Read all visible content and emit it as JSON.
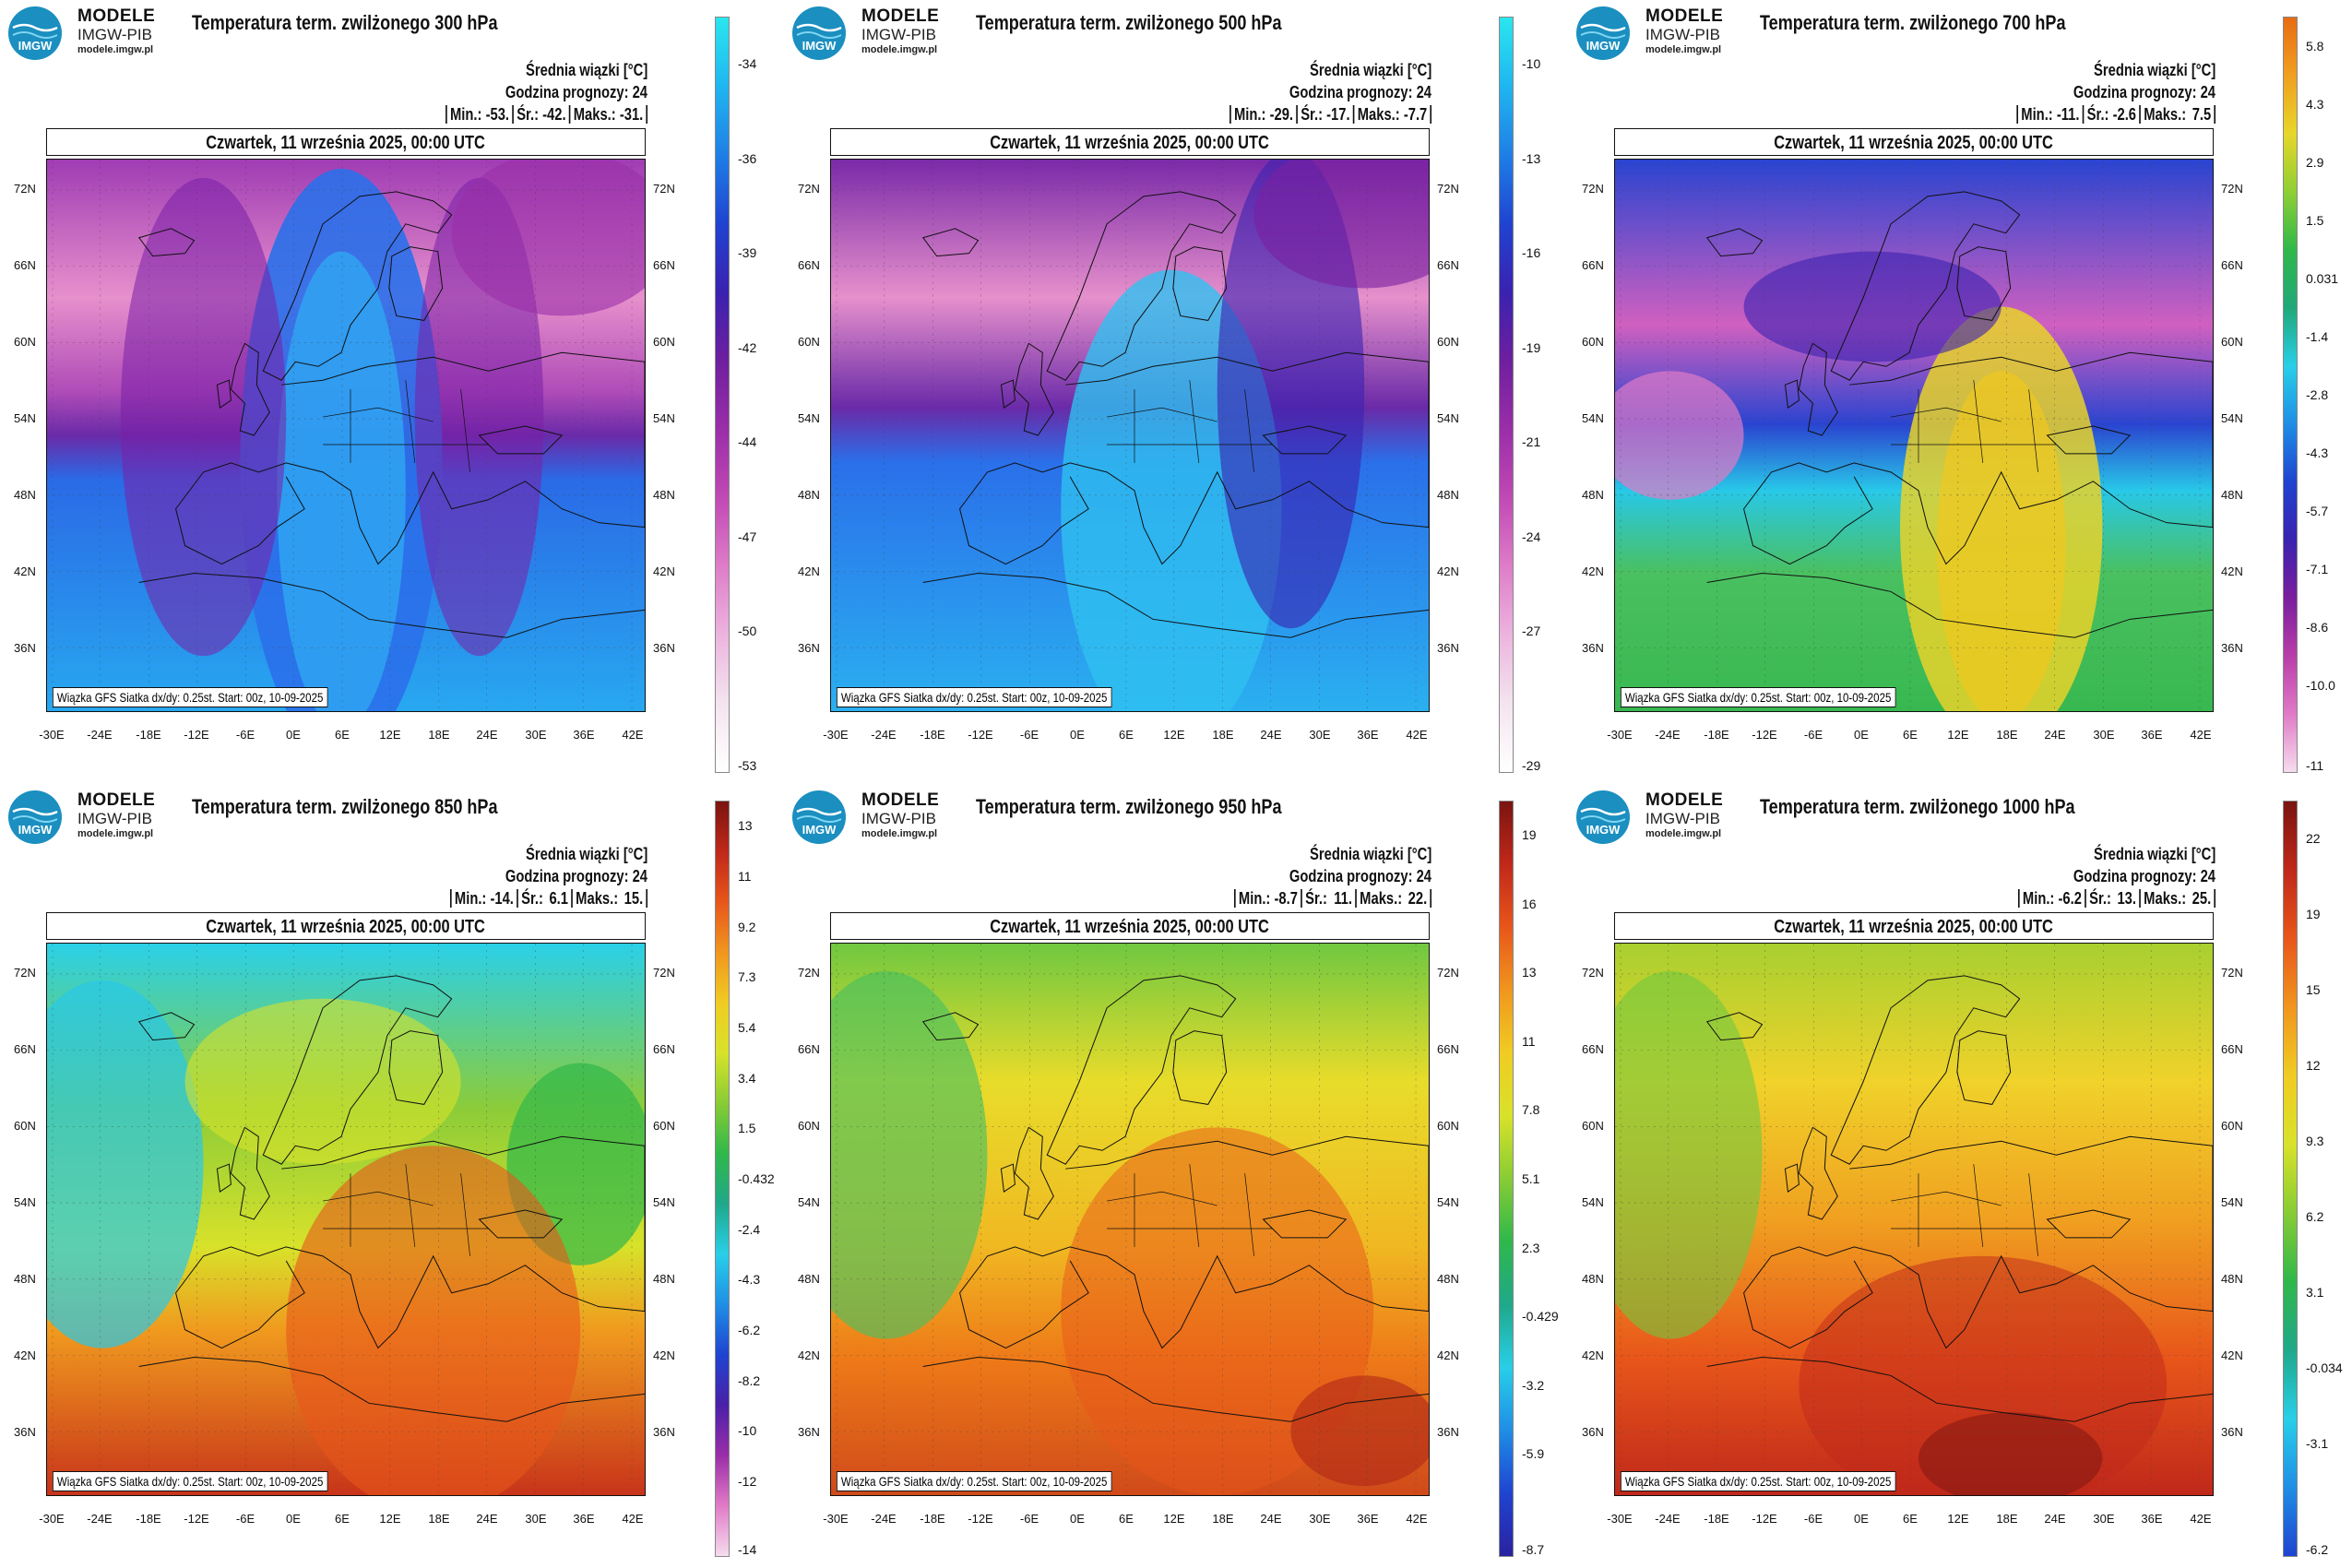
{
  "brand": {
    "name": "MODELE",
    "org": "IMGW-PIB",
    "url": "modele.imgw.pl",
    "logo_text": "IMGW"
  },
  "common": {
    "stat_header": "Średnia wiązki [°C]",
    "forecast_hour": "Godzina prognozy: 24",
    "min_label": "Min.:",
    "mean_label": "Śr.:",
    "max_label": "Maks.:",
    "date": "Czwartek, 11 września 2025, 00:00 UTC",
    "footer": "Wiązka GFS Siatka dx/dy: 0.25st. Start: 00z, 10-09-2025",
    "lat_labels": [
      "72N",
      "66N",
      "60N",
      "54N",
      "48N",
      "42N",
      "36N"
    ],
    "lon_labels": [
      "-30E",
      "-24E",
      "-18E",
      "-12E",
      "-6E",
      "0E",
      "6E",
      "12E",
      "18E",
      "24E",
      "30E",
      "36E",
      "42E"
    ]
  },
  "colors": {
    "cold_pink": "#e680c8",
    "purple": "#8a1fa0",
    "blue": "#1f4fd8",
    "cyan": "#2ad4ee",
    "green": "#2fb84a",
    "yellow": "#f2e22a",
    "orange": "#ee7a18",
    "red": "#c0281a"
  },
  "panels": [
    {
      "title": "Temperatura term. zwilżonego 300 hPa",
      "min": "-53.",
      "mean": "-42.",
      "max": "-31.",
      "colorbar": [
        "-34",
        "-36",
        "-39",
        "-42",
        "-44",
        "-47",
        "-50",
        "-53"
      ],
      "scheme": "p300"
    },
    {
      "title": "Temperatura term. zwilżonego 500 hPa",
      "min": "-29.",
      "mean": "-17.",
      "max": "-7.7",
      "colorbar": [
        "-10",
        "-13",
        "-16",
        "-19",
        "-21",
        "-24",
        "-27",
        "-29"
      ],
      "scheme": "p500"
    },
    {
      "title": "Temperatura term. zwilżonego 700 hPa",
      "min": "-11.",
      "mean": "-2.6",
      "max": "7.5",
      "colorbar": [
        "5.8",
        "4.3",
        "2.9",
        "1.5",
        "0.031",
        "-1.4",
        "-2.8",
        "-4.3",
        "-5.7",
        "-7.1",
        "-8.6",
        "-10.0",
        "-11"
      ],
      "scheme": "p700"
    },
    {
      "title": "Temperatura term. zwilżonego 850 hPa",
      "min": "-14.",
      "mean": "6.1",
      "max": "15.",
      "colorbar": [
        "13",
        "11",
        "9.2",
        "7.3",
        "5.4",
        "3.4",
        "1.5",
        "-0.432",
        "-2.4",
        "-4.3",
        "-6.2",
        "-8.2",
        "-10",
        "-12",
        "-14"
      ],
      "scheme": "p850"
    },
    {
      "title": "Temperatura term. zwilżonego 950 hPa",
      "min": "-8.7",
      "mean": "11.",
      "max": "22.",
      "colorbar": [
        "19",
        "16",
        "13",
        "11",
        "7.8",
        "5.1",
        "2.3",
        "-0.429",
        "-3.2",
        "-5.9",
        "-8.7"
      ],
      "scheme": "p950"
    },
    {
      "title": "Temperatura term. zwilżonego 1000 hPa",
      "min": "-6.2",
      "mean": "13.",
      "max": "25.",
      "colorbar": [
        "22",
        "19",
        "15",
        "12",
        "9.3",
        "6.2",
        "3.1",
        "-0.034",
        "-3.1",
        "-6.2"
      ],
      "scheme": "p1000"
    }
  ]
}
